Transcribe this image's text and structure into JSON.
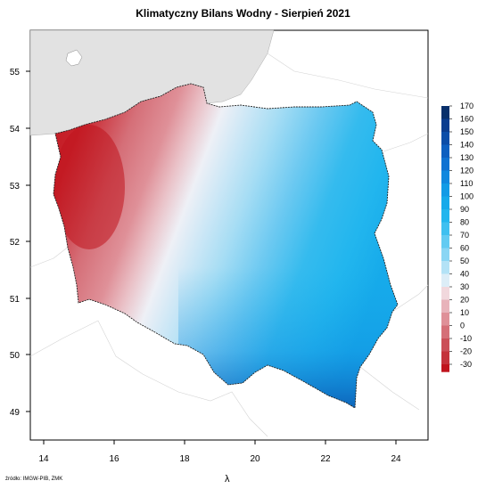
{
  "title": "Klimatyczny Bilans Wodny - Sierpień 2021",
  "x_axis": {
    "label": "λ",
    "ticks": [
      "14",
      "16",
      "18",
      "20",
      "22",
      "24"
    ]
  },
  "y_axis": {
    "ticks": [
      "55",
      "54",
      "53",
      "52",
      "51",
      "50",
      "49"
    ]
  },
  "legend": {
    "labels": [
      "170",
      "160",
      "150",
      "140",
      "130",
      "120",
      "110",
      "100",
      "90",
      "80",
      "70",
      "60",
      "50",
      "40",
      "30",
      "20",
      "10",
      "0",
      "-10",
      "-20",
      "-30"
    ],
    "colors": [
      "#08306b",
      "#0a3d8f",
      "#0b4da8",
      "#0d5fc0",
      "#0f72d2",
      "#1088de",
      "#129be6",
      "#16aaea",
      "#22b6ee",
      "#3fc0f0",
      "#63cbf2",
      "#8ad6f4",
      "#b3e2f6",
      "#dcedf7",
      "#f1d8dd",
      "#e8b3ba",
      "#df9098",
      "#d56f78",
      "#cb4f58",
      "#c4323b",
      "#c0141d"
    ]
  },
  "source": "źródło: IMGW-PIB, ZMK",
  "colors": {
    "sea": "#e2e2e2",
    "border": "#000000",
    "background": "#ffffff"
  }
}
